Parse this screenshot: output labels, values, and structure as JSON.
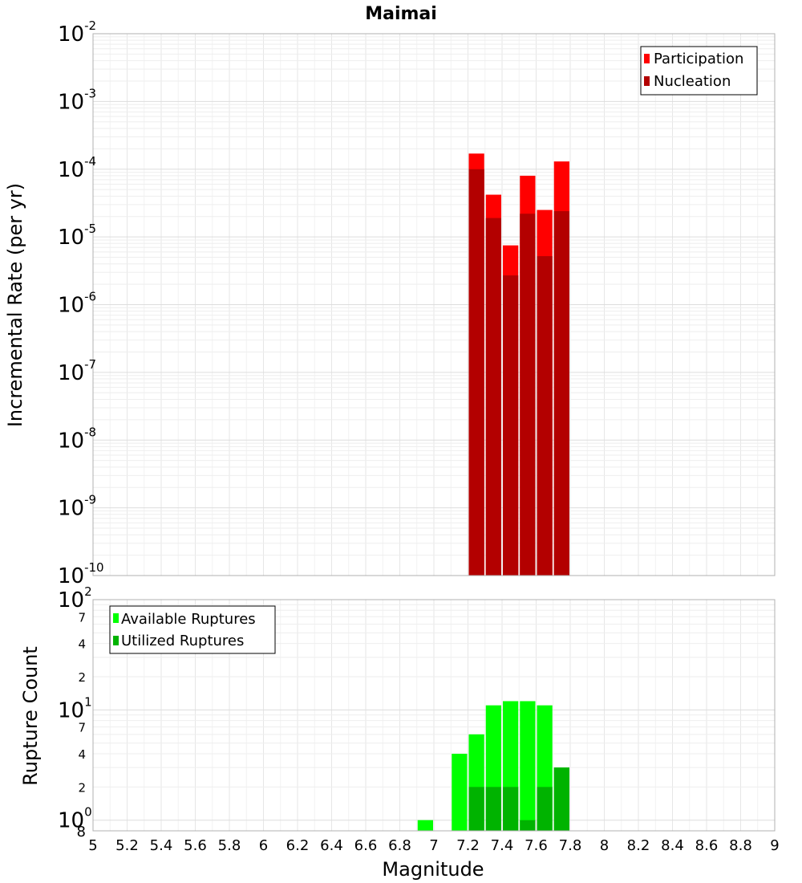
{
  "chart_data": [
    {
      "type": "bar",
      "title": "Maimai",
      "ylabel": "Incremental Rate (per yr)",
      "yscale": "log",
      "ylim": [
        1e-10,
        0.01
      ],
      "xlim": [
        5,
        9
      ],
      "bin_width": 0.1,
      "y_ticks": [
        {
          "base": "10",
          "exp": "-10"
        },
        {
          "base": "10",
          "exp": "-9"
        },
        {
          "base": "10",
          "exp": "-8"
        },
        {
          "base": "10",
          "exp": "-7"
        },
        {
          "base": "10",
          "exp": "-6"
        },
        {
          "base": "10",
          "exp": "-5"
        },
        {
          "base": "10",
          "exp": "-4"
        },
        {
          "base": "10",
          "exp": "-3"
        },
        {
          "base": "10",
          "exp": "-2"
        }
      ],
      "legend_position": "top-right",
      "series": [
        {
          "name": "Participation",
          "color": "#ff0000",
          "x": [
            7.25,
            7.35,
            7.45,
            7.55,
            7.65,
            7.75
          ],
          "values": [
            0.00017,
            4.2e-05,
            7.5e-06,
            8e-05,
            2.5e-05,
            0.00013
          ]
        },
        {
          "name": "Nucleation",
          "color": "#b30000",
          "x": [
            7.25,
            7.35,
            7.45,
            7.55,
            7.65,
            7.75
          ],
          "values": [
            0.0001,
            1.9e-05,
            2.7e-06,
            2.2e-05,
            5.2e-06,
            2.4e-05
          ]
        }
      ]
    },
    {
      "type": "bar",
      "xlabel": "Magnitude",
      "ylabel": "Rupture Count",
      "yscale": "log",
      "ylim": [
        0.8,
        100
      ],
      "xlim": [
        5,
        9
      ],
      "bin_width": 0.1,
      "x_ticks": [
        "5",
        "5.2",
        "5.4",
        "5.6",
        "5.8",
        "6",
        "6.2",
        "6.4",
        "6.6",
        "6.8",
        "7",
        "7.2",
        "7.4",
        "7.6",
        "7.8",
        "8",
        "8.2",
        "8.4",
        "8.6",
        "8.8",
        "9"
      ],
      "y_major_ticks": [
        {
          "base": "10",
          "exp": "0"
        },
        {
          "base": "10",
          "exp": "1"
        },
        {
          "base": "10",
          "exp": "2"
        }
      ],
      "y_minor_ticks": [
        {
          "value": 2,
          "label": "2"
        },
        {
          "value": 4,
          "label": "4"
        },
        {
          "value": 7,
          "label": "7"
        },
        {
          "value": 20,
          "label": "2"
        },
        {
          "value": 40,
          "label": "4"
        },
        {
          "value": 70,
          "label": "7"
        }
      ],
      "y_bottom_label": "8",
      "legend_position": "top-left",
      "series": [
        {
          "name": "Available Ruptures",
          "color": "#00ff00",
          "x": [
            6.95,
            7.15,
            7.25,
            7.35,
            7.45,
            7.55,
            7.65,
            7.75
          ],
          "values": [
            1,
            4,
            6,
            11,
            12,
            12,
            11,
            3
          ]
        },
        {
          "name": "Utilized Ruptures",
          "color": "#00b300",
          "x": [
            7.25,
            7.35,
            7.45,
            7.55,
            7.65,
            7.75
          ],
          "values": [
            2,
            2,
            2,
            1,
            2,
            3
          ]
        }
      ]
    }
  ]
}
